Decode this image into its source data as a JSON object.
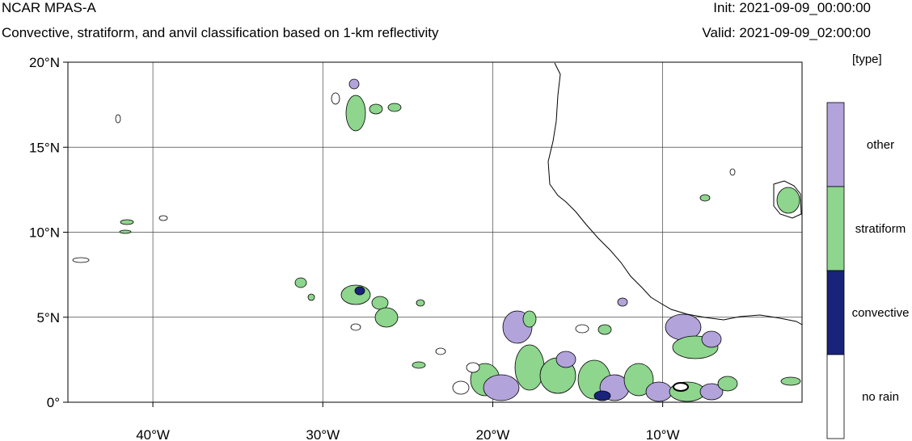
{
  "header": {
    "title": "NCAR MPAS-A",
    "subtitle": "Convective, stratiform, and anvil classification based on 1-km reflectivity",
    "init": "Init: 2021-09-09_00:00:00",
    "valid": "Valid: 2021-09-09_02:00:00"
  },
  "map": {
    "lon_range": [
      -45,
      -1.8
    ],
    "lat_range": [
      0,
      20
    ],
    "lat_labels": [
      "0°",
      "5°N",
      "10°N",
      "15°N",
      "20°N"
    ],
    "lat_values": [
      0,
      5,
      10,
      15,
      20
    ],
    "lon_labels": [
      "40°W",
      "30°W",
      "20°W",
      "10°W"
    ],
    "lon_values": [
      -40,
      -30,
      -20,
      -10
    ]
  },
  "legend": {
    "units": "[type]",
    "entries": [
      {
        "label": "other",
        "color": "#b3a3db"
      },
      {
        "label": "stratiform",
        "color": "#8ed58e"
      },
      {
        "label": "convective",
        "color": "#1a237a"
      },
      {
        "label": "no rain",
        "color": "#ffffff"
      }
    ]
  }
}
